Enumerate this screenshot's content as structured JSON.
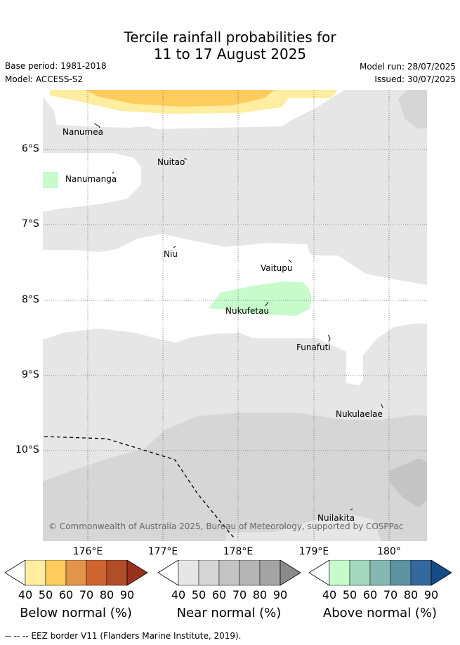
{
  "title_line1": "Tercile rainfall probabilities for",
  "title_line2": "11 to 17 August 2025",
  "base_period": "Base period: 1981-2018",
  "model": "Model: ACCESS-S2",
  "model_run": "Model run: 28/07/2025",
  "issued": "Issued: 30/07/2025",
  "lat_labels": [
    "6°S",
    "7°S",
    "8°S",
    "9°S",
    "10°S"
  ],
  "lon_labels": [
    "176°E",
    "177°E",
    "178°E",
    "179°E",
    "180°"
  ],
  "islands": [
    "Nanumea",
    "Nuitao",
    "Nanumanga",
    "Niu",
    "Vaitupu",
    "Nukufetau",
    "Funafuti",
    "Nukulaelae",
    "Nuilakita"
  ],
  "copyright": "© Commonwealth of Australia 2025, Bureau of Meteorology, supported by COSPPac",
  "colorbars": [
    {
      "title": "Below normal (%)",
      "ticks": [
        "40",
        "50",
        "60",
        "70",
        "80",
        "90"
      ],
      "colors": [
        "#ffffff",
        "#ffeda0",
        "#fecc5c",
        "#e2954a",
        "#d0642e",
        "#b24d2a",
        "#99311f"
      ]
    },
    {
      "title": "Near normal (%)",
      "ticks": [
        "40",
        "50",
        "60",
        "70",
        "80",
        "90"
      ],
      "colors": [
        "#ffffff",
        "#e6e6e6",
        "#d6d6d6",
        "#c4c4c4",
        "#b4b4b4",
        "#a4a4a4",
        "#8a8a8a"
      ]
    },
    {
      "title": "Above normal (%)",
      "ticks": [
        "40",
        "50",
        "60",
        "70",
        "80",
        "90"
      ],
      "colors": [
        "#ffffff",
        "#c8fbcb",
        "#a4d9c0",
        "#86b8b3",
        "#5b93a3",
        "#3469a0",
        "#154b86"
      ]
    }
  ],
  "footnote": "--  --  -- EEZ border V11 (Flanders Marine Institute, 2019)."
}
